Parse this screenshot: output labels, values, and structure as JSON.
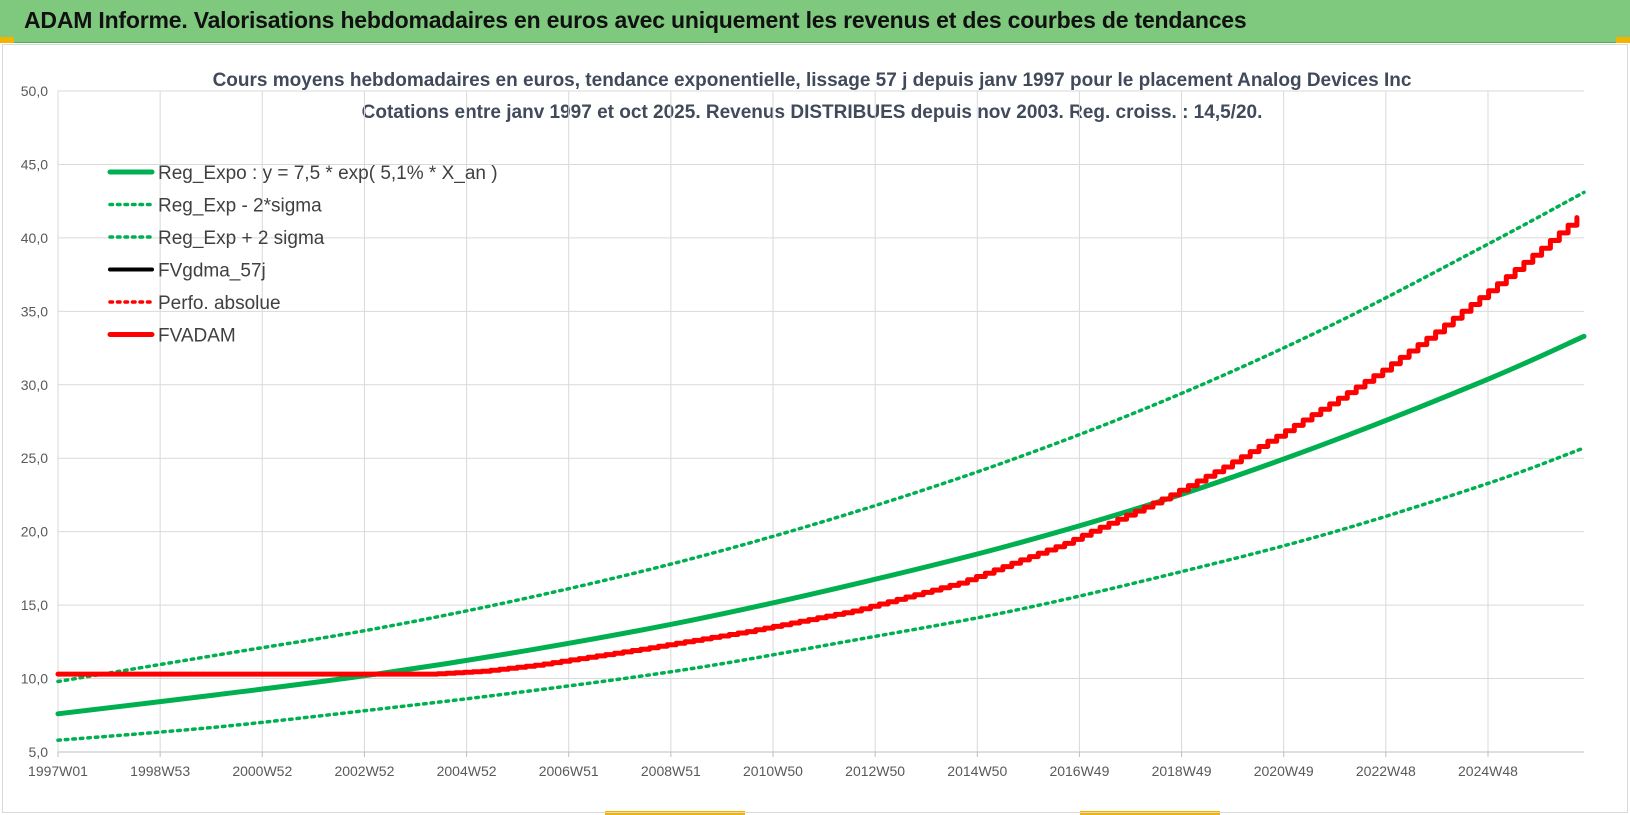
{
  "header": {
    "title": "ADAM Informe. Valorisations hebdomadaires en euros avec uniquement les revenus et des courbes de tendances"
  },
  "chart_data": {
    "type": "line",
    "title": "Cours moyens hebdomadaires en euros, tendance exponentielle, lissage 57 j depuis janv 1997 pour le placement Analog Devices Inc",
    "subtitle": "Cotations entre janv 1997 et oct 2025. Revenus DISTRIBUES depuis nov 2003. Reg. croiss. : 14,5/20.",
    "xlabel": "",
    "ylabel": "",
    "ylim": [
      5,
      50
    ],
    "yticks": [
      "5,0",
      "10,0",
      "15,0",
      "20,0",
      "25,0",
      "30,0",
      "35,0",
      "40,0",
      "45,0",
      "50,0"
    ],
    "xticks": [
      "1997W01",
      "1998W53",
      "2000W52",
      "2002W52",
      "2004W52",
      "2006W51",
      "2008W51",
      "2010W50",
      "2012W50",
      "2014W50",
      "2016W49",
      "2018W49",
      "2020W49",
      "2022W48",
      "2024W48"
    ],
    "x_range_years": [
      1997.0,
      2025.8
    ],
    "grid": true,
    "legend_position": "top-left",
    "colors": {
      "green": "#00b050",
      "red": "#ff0000",
      "black": "#000000"
    },
    "series": [
      {
        "name": "Reg_Expo : y = 7,5 * exp( 5,1% *  X_an )",
        "style": "solid",
        "color": "#00b050",
        "x": [
          1997,
          2000,
          2003,
          2006,
          2009,
          2012,
          2015,
          2018,
          2021,
          2024,
          2025.8
        ],
        "values": [
          7.6,
          8.9,
          10.3,
          12.0,
          14.0,
          16.4,
          19.1,
          22.3,
          26.1,
          30.4,
          33.3
        ]
      },
      {
        "name": "Reg_Exp - 2*sigma",
        "style": "dotted",
        "color": "#00b050",
        "x": [
          1997,
          2000,
          2003,
          2006,
          2009,
          2012,
          2015,
          2018,
          2021,
          2024,
          2025.8
        ],
        "values": [
          5.8,
          6.7,
          7.9,
          9.2,
          10.7,
          12.6,
          14.6,
          17.1,
          19.9,
          23.3,
          25.7
        ]
      },
      {
        "name": "Reg_Exp + 2 sigma",
        "style": "dotted",
        "color": "#00b050",
        "x": [
          1997,
          2000,
          2003,
          2006,
          2009,
          2012,
          2015,
          2018,
          2021,
          2024,
          2025.8
        ],
        "values": [
          9.8,
          11.6,
          13.4,
          15.6,
          18.2,
          21.3,
          24.9,
          29.1,
          34.0,
          39.6,
          43.1
        ]
      },
      {
        "name": "FVgdma_57j",
        "style": "solid-thin",
        "color": "#000000",
        "x": [
          1997,
          2003,
          2004,
          2005,
          2006,
          2008,
          2010,
          2012,
          2014,
          2016,
          2018,
          2019,
          2020,
          2021,
          2022,
          2023,
          2024,
          2025,
          2025.8
        ],
        "values": [
          10.3,
          10.3,
          10.3,
          10.5,
          10.9,
          12.0,
          13.2,
          14.6,
          16.5,
          19.2,
          22.5,
          24.4,
          26.5,
          28.7,
          31.0,
          33.6,
          36.4,
          39.3,
          41.8
        ]
      },
      {
        "name": "Perfo. absolue",
        "style": "dotted",
        "color": "#ff0000",
        "x": [],
        "values": []
      },
      {
        "name": "FVADAM",
        "style": "solid-step",
        "color": "#ff0000",
        "x": [
          1997,
          2003,
          2004,
          2005,
          2006,
          2008,
          2010,
          2012,
          2014,
          2016,
          2018,
          2019,
          2020,
          2021,
          2022,
          2023,
          2024,
          2025,
          2025.8
        ],
        "values": [
          10.3,
          10.3,
          10.3,
          10.5,
          10.9,
          12.0,
          13.2,
          14.6,
          16.5,
          19.2,
          22.5,
          24.4,
          26.5,
          28.7,
          31.0,
          33.6,
          36.4,
          39.3,
          41.8
        ]
      }
    ]
  }
}
